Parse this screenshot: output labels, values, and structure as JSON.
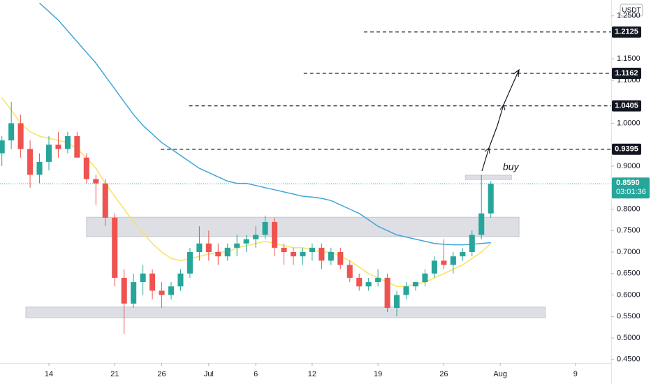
{
  "chart_data": {
    "type": "candlestick",
    "currency": "USDT",
    "annotation": "buy",
    "xlim": [
      -5.2,
      59.8
    ],
    "ylim": [
      0.4415,
      1.287
    ],
    "xticks": [
      {
        "value": 0,
        "label": "14"
      },
      {
        "value": 7,
        "label": "21"
      },
      {
        "value": 12,
        "label": "26"
      },
      {
        "value": 17,
        "label": "Jul"
      },
      {
        "value": 22,
        "label": "6"
      },
      {
        "value": 28,
        "label": "12"
      },
      {
        "value": 35,
        "label": "19"
      },
      {
        "value": 42,
        "label": "26"
      },
      {
        "value": 48,
        "label": "Aug"
      },
      {
        "value": 56,
        "label": "9"
      }
    ],
    "yticks": [
      {
        "value": 0.45,
        "label": "0.4500"
      },
      {
        "value": 0.5,
        "label": "0.5000"
      },
      {
        "value": 0.55,
        "label": "0.5500"
      },
      {
        "value": 0.6,
        "label": "0.6000"
      },
      {
        "value": 0.65,
        "label": "0.6500"
      },
      {
        "value": 0.7,
        "label": "0.7000"
      },
      {
        "value": 0.75,
        "label": "0.7500"
      },
      {
        "value": 0.8,
        "label": "0.8000"
      },
      {
        "value": 0.9,
        "label": "0.9000"
      },
      {
        "value": 1.0,
        "label": "1.0000"
      },
      {
        "value": 1.1,
        "label": "1.1000"
      },
      {
        "value": 1.15,
        "label": "1.1500"
      },
      {
        "value": 1.25,
        "label": "1.2500"
      }
    ],
    "x": [
      -5,
      -4,
      -3,
      -2,
      -1,
      0,
      1,
      2,
      3,
      4,
      5,
      6,
      7,
      8,
      9,
      10,
      11,
      12,
      13,
      14,
      15,
      16,
      17,
      18,
      19,
      20,
      21,
      22,
      23,
      24,
      25,
      26,
      27,
      28,
      29,
      30,
      31,
      32,
      33,
      34,
      35,
      36,
      37,
      38,
      39,
      40,
      41,
      42,
      43,
      44,
      45,
      46,
      47
    ],
    "open": [
      0.93,
      0.96,
      1.0,
      0.94,
      0.88,
      0.91,
      0.95,
      0.94,
      0.97,
      0.92,
      0.87,
      0.86,
      0.78,
      0.64,
      0.58,
      0.63,
      0.65,
      0.61,
      0.6,
      0.62,
      0.65,
      0.7,
      0.72,
      0.7,
      0.69,
      0.71,
      0.72,
      0.73,
      0.74,
      0.77,
      0.71,
      0.7,
      0.69,
      0.7,
      0.71,
      0.68,
      0.7,
      0.67,
      0.64,
      0.62,
      0.63,
      0.64,
      0.57,
      0.6,
      0.62,
      0.63,
      0.65,
      0.68,
      0.67,
      0.69,
      0.7,
      0.74,
      0.79
    ],
    "high": [
      0.97,
      1.05,
      1.02,
      0.96,
      0.93,
      0.97,
      0.98,
      0.98,
      0.98,
      0.93,
      0.88,
      0.87,
      0.79,
      0.66,
      0.65,
      0.67,
      0.66,
      0.63,
      0.63,
      0.66,
      0.71,
      0.76,
      0.75,
      0.72,
      0.72,
      0.74,
      0.74,
      0.76,
      0.785,
      0.78,
      0.72,
      0.71,
      0.71,
      0.72,
      0.72,
      0.71,
      0.71,
      0.68,
      0.65,
      0.64,
      0.66,
      0.65,
      0.61,
      0.63,
      0.63,
      0.66,
      0.69,
      0.73,
      0.7,
      0.71,
      0.75,
      0.88,
      0.865
    ],
    "low": [
      0.9,
      0.94,
      0.92,
      0.85,
      0.86,
      0.89,
      0.92,
      0.93,
      0.92,
      0.86,
      0.81,
      0.76,
      0.62,
      0.51,
      0.57,
      0.6,
      0.59,
      0.57,
      0.59,
      0.61,
      0.64,
      0.68,
      0.68,
      0.67,
      0.68,
      0.69,
      0.7,
      0.71,
      0.73,
      0.69,
      0.67,
      0.67,
      0.67,
      0.68,
      0.66,
      0.67,
      0.66,
      0.63,
      0.61,
      0.61,
      0.62,
      0.56,
      0.55,
      0.59,
      0.61,
      0.62,
      0.64,
      0.66,
      0.65,
      0.68,
      0.69,
      0.73,
      0.78
    ],
    "close": [
      0.96,
      1.0,
      0.94,
      0.88,
      0.91,
      0.95,
      0.94,
      0.97,
      0.92,
      0.87,
      0.86,
      0.78,
      0.64,
      0.58,
      0.63,
      0.65,
      0.61,
      0.6,
      0.62,
      0.65,
      0.7,
      0.72,
      0.7,
      0.69,
      0.71,
      0.72,
      0.73,
      0.74,
      0.77,
      0.71,
      0.7,
      0.69,
      0.7,
      0.71,
      0.68,
      0.7,
      0.67,
      0.64,
      0.62,
      0.63,
      0.64,
      0.57,
      0.6,
      0.62,
      0.63,
      0.65,
      0.68,
      0.67,
      0.69,
      0.7,
      0.74,
      0.79,
      0.859
    ],
    "up_color": "#26a69a",
    "down_color": "#ef5350",
    "lines": [
      {
        "color": "#f7e25f",
        "values": [
          1.06,
          1.03,
          1.0,
          0.98,
          0.97,
          0.965,
          0.96,
          0.955,
          0.94,
          0.92,
          0.895,
          0.86,
          0.83,
          0.8,
          0.77,
          0.745,
          0.72,
          0.7,
          0.685,
          0.68,
          0.685,
          0.69,
          0.695,
          0.7,
          0.7,
          0.71,
          0.715,
          0.72,
          0.725,
          0.72,
          0.715,
          0.71,
          0.71,
          0.705,
          0.7,
          0.7,
          0.69,
          0.68,
          0.665,
          0.65,
          0.64,
          0.63,
          0.62,
          0.62,
          0.625,
          0.63,
          0.64,
          0.65,
          0.66,
          0.67,
          0.685,
          0.7,
          0.72
        ]
      },
      {
        "color": "#42a5d8",
        "values": [
          null,
          null,
          null,
          null,
          1.28,
          1.26,
          1.24,
          1.215,
          1.19,
          1.165,
          1.14,
          1.11,
          1.08,
          1.05,
          1.02,
          0.995,
          0.975,
          0.955,
          0.94,
          0.925,
          0.91,
          0.895,
          0.885,
          0.875,
          0.865,
          0.86,
          0.86,
          0.855,
          0.85,
          0.845,
          0.84,
          0.835,
          0.83,
          0.828,
          0.825,
          0.82,
          0.81,
          0.8,
          0.79,
          0.775,
          0.76,
          0.75,
          0.74,
          0.735,
          0.73,
          0.725,
          0.72,
          0.718,
          0.717,
          0.717,
          0.718,
          0.72,
          0.722
        ]
      }
    ],
    "zones": [
      {
        "x": [
          4.0,
          50.0
        ],
        "y": [
          0.736,
          0.781
        ]
      },
      {
        "x": [
          -2.45,
          52.8
        ],
        "y": [
          0.547,
          0.572
        ]
      },
      {
        "x": [
          44.3,
          49.2
        ],
        "y": [
          0.869,
          0.879
        ]
      }
    ],
    "levels": [
      {
        "value": 1.2125,
        "from": 33.5
      },
      {
        "value": 1.1162,
        "from": 27.1
      },
      {
        "value": 1.0405,
        "from": 14.9
      },
      {
        "value": 0.9395,
        "from": 11.9
      }
    ],
    "last_price": {
      "value": 0.859,
      "label": "0.8590",
      "countdown": "03:01:36"
    }
  }
}
